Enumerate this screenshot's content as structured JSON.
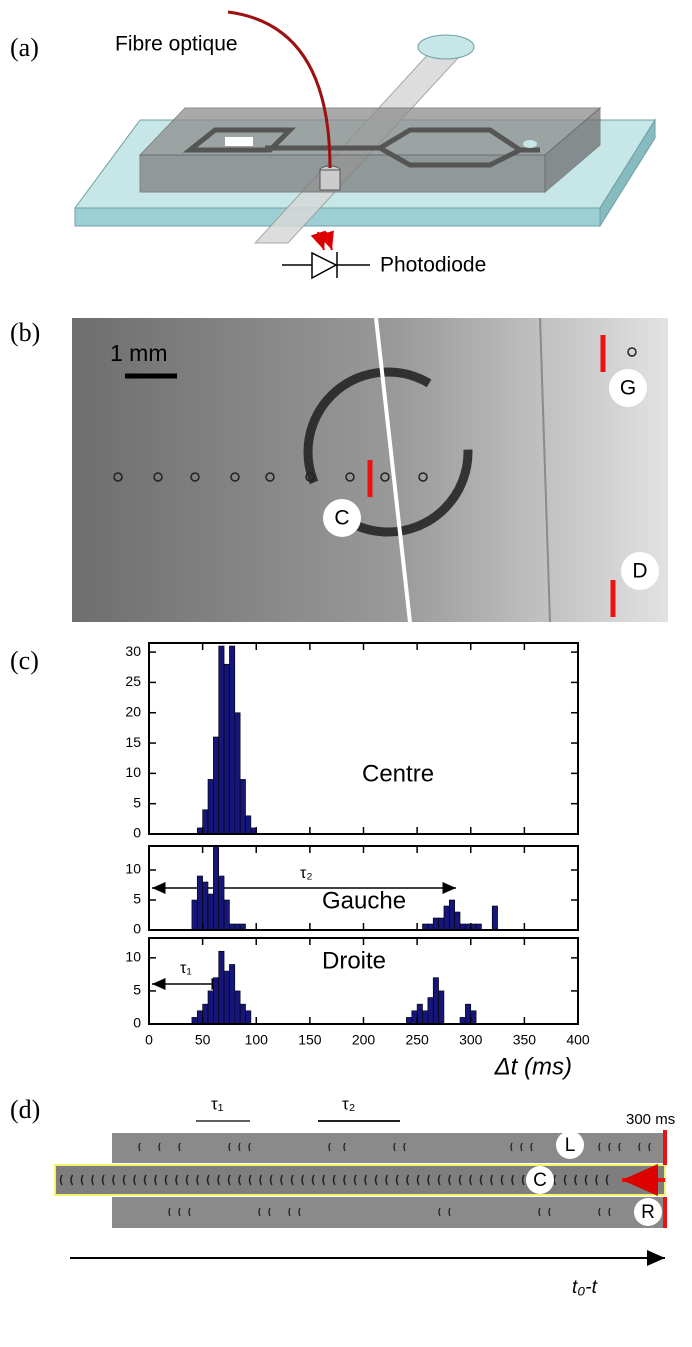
{
  "panel_a": {
    "label": "(a)",
    "fibre": "Fibre optique",
    "detector": "Photodiode"
  },
  "panel_b": {
    "label": "(b)",
    "scale": "1 mm",
    "markers": [
      "G",
      "C",
      "D"
    ]
  },
  "panel_c_label": "(c)",
  "chart_data": [
    {
      "type": "histogram",
      "color": "#16167a",
      "bins": [
        40,
        45,
        50,
        55,
        60,
        65,
        70,
        75,
        80,
        85,
        90,
        95,
        100,
        105,
        110,
        115,
        120,
        125,
        130,
        135,
        140,
        145,
        150,
        155,
        160,
        165,
        170,
        175,
        180,
        185,
        190,
        195,
        200,
        205,
        210,
        215,
        220,
        225,
        230,
        235,
        240,
        245,
        250,
        255,
        260,
        265,
        270,
        275,
        280,
        285,
        290,
        295,
        300,
        305,
        310,
        315,
        320,
        325
      ],
      "values": [
        0,
        1,
        4,
        9,
        16,
        31,
        28,
        31,
        20,
        9,
        3,
        1,
        0,
        0,
        0,
        0,
        0,
        0,
        0,
        0,
        0,
        0,
        0,
        0,
        0,
        0,
        0,
        0,
        0,
        0,
        0,
        0,
        0,
        0,
        0,
        0,
        0,
        0,
        0,
        0,
        0,
        0,
        0,
        0,
        0,
        0,
        0,
        0,
        0,
        0,
        0,
        0,
        0,
        0,
        0,
        0,
        0
      ],
      "xlim": [
        0,
        400
      ],
      "xticks": [
        0,
        50,
        100,
        150,
        200,
        250,
        300,
        350,
        400
      ],
      "ylim": [
        0,
        31.5
      ],
      "yticks": [
        0,
        5,
        10,
        15,
        20,
        25,
        30
      ],
      "annotations": [
        "Centre"
      ]
    },
    {
      "type": "histogram",
      "color": "#16167a",
      "bins": [
        40,
        45,
        50,
        55,
        60,
        65,
        70,
        75,
        80,
        85,
        90,
        95,
        100,
        105,
        110,
        115,
        120,
        125,
        130,
        135,
        140,
        145,
        150,
        155,
        160,
        165,
        170,
        175,
        180,
        185,
        190,
        195,
        200,
        205,
        210,
        215,
        220,
        225,
        230,
        235,
        240,
        245,
        250,
        255,
        260,
        265,
        270,
        275,
        280,
        285,
        290,
        295,
        300,
        305,
        310,
        315,
        320,
        325
      ],
      "values": [
        5,
        9,
        8,
        6,
        14,
        9,
        5,
        1,
        1,
        1,
        0,
        0,
        0,
        0,
        0,
        0,
        0,
        0,
        0,
        0,
        0,
        0,
        0,
        0,
        0,
        0,
        0,
        0,
        0,
        0,
        0,
        0,
        0,
        0,
        0,
        0,
        0,
        0,
        0,
        0,
        0,
        0,
        0,
        1,
        1,
        2,
        2,
        4,
        5,
        3,
        1,
        1,
        1,
        1,
        0,
        0,
        4
      ],
      "xlim": [
        0,
        400
      ],
      "xticks": [
        0,
        50,
        100,
        150,
        200,
        250,
        300,
        350,
        400
      ],
      "ylim": [
        0,
        14
      ],
      "yticks": [
        0,
        5,
        10
      ],
      "annotations": [
        "Gauche",
        "τ₂"
      ]
    },
    {
      "type": "histogram",
      "color": "#16167a",
      "bins": [
        40,
        45,
        50,
        55,
        60,
        65,
        70,
        75,
        80,
        85,
        90,
        95,
        100,
        105,
        110,
        115,
        120,
        125,
        130,
        135,
        140,
        145,
        150,
        155,
        160,
        165,
        170,
        175,
        180,
        185,
        190,
        195,
        200,
        205,
        210,
        215,
        220,
        225,
        230,
        235,
        240,
        245,
        250,
        255,
        260,
        265,
        270,
        275,
        280,
        285,
        290,
        295,
        300,
        305,
        310,
        315,
        320,
        325
      ],
      "values": [
        1,
        2,
        3,
        5,
        7,
        11,
        8,
        9,
        5,
        3,
        2,
        0,
        0,
        0,
        0,
        0,
        0,
        0,
        0,
        0,
        0,
        0,
        0,
        0,
        0,
        0,
        0,
        0,
        0,
        0,
        0,
        0,
        0,
        0,
        0,
        0,
        0,
        0,
        0,
        0,
        1,
        2,
        3,
        2,
        4,
        7,
        5,
        0,
        0,
        0,
        1,
        3,
        2,
        0,
        0,
        0,
        0
      ],
      "xlim": [
        0,
        400
      ],
      "xticks": [
        0,
        50,
        100,
        150,
        200,
        250,
        300,
        350,
        400
      ],
      "ylim": [
        0,
        13
      ],
      "yticks": [
        0,
        5,
        10
      ],
      "xlabel": "Δt (ms)",
      "annotations": [
        "Droite",
        "τ₁"
      ]
    }
  ],
  "panel_d": {
    "label": "(d)",
    "tau1": "τ₁",
    "tau2": "τ₂",
    "scale": "300 ms",
    "rows": [
      "L",
      "C",
      "R"
    ],
    "axis": "t₀-t"
  }
}
